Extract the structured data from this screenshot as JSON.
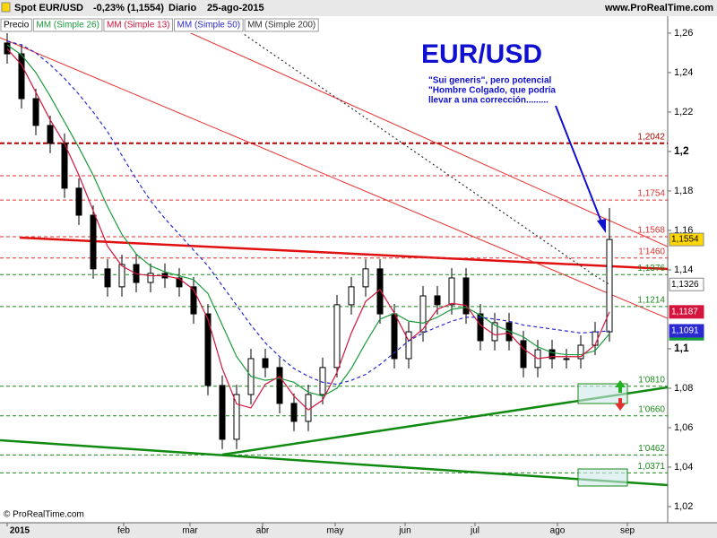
{
  "header": {
    "instrument": "Spot EUR/USD",
    "change": "-0,23% (1,1554)",
    "period": "Diario",
    "date": "25-ago-2015",
    "site": "www.ProRealTime.com"
  },
  "chart_data": {
    "type": "candlestick",
    "annotation_title": "EUR/USD",
    "annotation_note": [
      "\"Sui generis\", pero potencial",
      "\"Hombre Colgado, que podría",
      "llevar a una corrección........."
    ],
    "copyright": "© ProRealTime.com",
    "x_labels": [
      "2015",
      "feb",
      "mar",
      "abr",
      "may",
      "jun",
      "jul",
      "ago",
      "sep"
    ],
    "ylim": [
      1.0118,
      1.2677
    ],
    "yticks": [
      {
        "value": 1.26,
        "label": "1,26"
      },
      {
        "value": 1.24,
        "label": "1,24"
      },
      {
        "value": 1.22,
        "label": "1,22"
      },
      {
        "value": 1.2,
        "label": "1,2"
      },
      {
        "value": 1.18,
        "label": "1,18"
      },
      {
        "value": 1.16,
        "label": "1,16"
      },
      {
        "value": 1.14,
        "label": "1,14"
      },
      {
        "value": 1.1,
        "label": "1,1"
      },
      {
        "value": 1.08,
        "label": "1,08"
      },
      {
        "value": 1.06,
        "label": "1,06"
      },
      {
        "value": 1.04,
        "label": "1,04"
      },
      {
        "value": 1.02,
        "label": "1,02"
      }
    ],
    "levels": [
      {
        "value": 1.2042,
        "label": "1,2042",
        "color": "#b00000"
      },
      {
        "value": 1.1877,
        "color": "#e03030"
      },
      {
        "value": 1.1754,
        "label": "1,1754",
        "color": "#e03030"
      },
      {
        "value": 1.1568,
        "label": "1,1568",
        "color": "#e03030"
      },
      {
        "value": 1.146,
        "label": "1'1460",
        "color": "#e03030"
      },
      {
        "value": 1.1376,
        "label": "1,1376",
        "color": "#1a8a1a"
      },
      {
        "value": 1.1214,
        "label": "1,1214",
        "color": "#1a8a1a"
      },
      {
        "value": 1.081,
        "label": "1'0810",
        "color": "#1a8a1a"
      },
      {
        "value": 1.066,
        "label": "1'0660",
        "color": "#1a8a1a"
      },
      {
        "value": 1.0462,
        "label": "1'0462",
        "color": "#1a8a1a"
      },
      {
        "value": 1.0371,
        "label": "1,0371",
        "color": "#1a8a1a"
      }
    ],
    "series": [
      {
        "name": "Precio",
        "style": "candle",
        "color": "#000000",
        "tag_color": "#ffd700",
        "last_label": "1,1554",
        "open": [
          1.255,
          1.2495,
          1.2268,
          1.2132,
          1.2041,
          1.1814,
          1.1677,
          1.1405,
          1.1314,
          1.1427,
          1.1336,
          1.1382,
          1.1359,
          1.1314,
          1.1177,
          1.0814,
          1.0541,
          1.0768,
          1.095,
          1.0905,
          1.0723,
          1.0632,
          1.0768,
          1.0905,
          1.1223,
          1.1314,
          1.1405,
          1.1177,
          1.095,
          1.1086,
          1.1268,
          1.1223,
          1.1359,
          1.1177,
          1.1041,
          1.1132,
          1.1041,
          1.0905,
          1.0995,
          1.095,
          1.095,
          1.1018,
          1.1086
        ],
        "high": [
          1.26,
          1.2545,
          1.2318,
          1.2182,
          1.2091,
          1.1864,
          1.1727,
          1.1455,
          1.1477,
          1.1477,
          1.1432,
          1.1432,
          1.1409,
          1.1364,
          1.1227,
          1.0864,
          1.0818,
          1.1,
          1.1,
          1.0955,
          1.0773,
          1.0818,
          1.0955,
          1.1273,
          1.1364,
          1.1455,
          1.1455,
          1.1227,
          1.1136,
          1.1318,
          1.1318,
          1.1409,
          1.1409,
          1.1227,
          1.1182,
          1.1182,
          1.1091,
          1.1045,
          1.1045,
          1.1,
          1.1068,
          1.1136,
          1.1714
        ],
        "low": [
          1.2445,
          1.2218,
          1.2082,
          1.1991,
          1.1764,
          1.1627,
          1.1355,
          1.1264,
          1.1264,
          1.1286,
          1.1286,
          1.1309,
          1.1264,
          1.1127,
          1.0764,
          1.0491,
          1.0491,
          1.0718,
          1.0855,
          1.0673,
          1.0582,
          1.0582,
          1.0718,
          1.0855,
          1.1173,
          1.1264,
          1.1127,
          1.09,
          1.09,
          1.1036,
          1.1173,
          1.1173,
          1.1127,
          1.0991,
          1.0991,
          1.0991,
          1.0855,
          1.0855,
          1.09,
          1.09,
          1.09,
          1.0968,
          1.1036
        ],
        "close": [
          1.2495,
          1.2268,
          1.2132,
          1.2041,
          1.1814,
          1.1677,
          1.1405,
          1.1314,
          1.1427,
          1.1336,
          1.1382,
          1.1359,
          1.1314,
          1.1177,
          1.0814,
          1.0541,
          1.0768,
          1.095,
          1.0905,
          1.0723,
          1.0632,
          1.0768,
          1.0905,
          1.1223,
          1.1314,
          1.1405,
          1.1177,
          1.095,
          1.1086,
          1.1268,
          1.1223,
          1.1359,
          1.1177,
          1.1041,
          1.1132,
          1.1041,
          1.0905,
          1.0995,
          1.095,
          1.095,
          1.1018,
          1.1086,
          1.1554
        ]
      },
      {
        "name": "MM (Simple 26)",
        "style": "line",
        "color": "#1a9a3a",
        "last_label": "1,1076",
        "values": [
          1.254,
          1.249,
          1.24,
          1.228,
          1.215,
          1.202,
          1.188,
          1.172,
          1.158,
          1.148,
          1.142,
          1.139,
          1.137,
          1.135,
          1.128,
          1.112,
          1.096,
          1.086,
          1.084,
          1.085,
          1.083,
          1.078,
          1.076,
          1.08,
          1.09,
          1.103,
          1.115,
          1.118,
          1.114,
          1.113,
          1.116,
          1.12,
          1.121,
          1.117,
          1.112,
          1.109,
          1.106,
          1.101,
          1.098,
          1.097,
          1.097,
          1.099,
          1.1076
        ]
      },
      {
        "name": "MM (Simple 13)",
        "style": "line",
        "color": "#d4143c",
        "last_label": "1,1187",
        "values": [
          1.252,
          1.244,
          1.23,
          1.216,
          1.204,
          1.188,
          1.17,
          1.152,
          1.142,
          1.138,
          1.137,
          1.137,
          1.1355,
          1.13,
          1.115,
          1.09,
          1.072,
          1.07,
          1.082,
          1.086,
          1.076,
          1.069,
          1.074,
          1.088,
          1.108,
          1.124,
          1.13,
          1.118,
          1.104,
          1.11,
          1.12,
          1.123,
          1.122,
          1.112,
          1.107,
          1.108,
          1.1,
          1.095,
          1.096,
          1.096,
          1.096,
          1.102,
          1.1187
        ]
      },
      {
        "name": "MM (Simple 50)",
        "style": "line",
        "dash": "4 3",
        "color": "#2a2ad0",
        "last_label": "1,1091",
        "values": [
          1.256,
          1.254,
          1.25,
          1.244,
          1.237,
          1.229,
          1.22,
          1.21,
          1.198,
          1.186,
          1.175,
          1.166,
          1.158,
          1.15,
          1.142,
          1.132,
          1.122,
          1.112,
          1.103,
          1.096,
          1.09,
          1.086,
          1.083,
          1.082,
          1.084,
          1.087,
          1.092,
          1.098,
          1.104,
          1.108,
          1.111,
          1.114,
          1.116,
          1.116,
          1.115,
          1.114,
          1.112,
          1.111,
          1.11,
          1.109,
          1.108,
          1.1085,
          1.1091
        ]
      },
      {
        "name": "MM (Simple 200)",
        "style": "line",
        "dash": "2 3",
        "color": "#333333",
        "tag_color": "#ffffff",
        "last_label": "1,1326",
        "values": [
          null,
          null,
          null,
          null,
          null,
          null,
          null,
          null,
          null,
          null,
          null,
          null,
          null,
          null,
          null,
          1.267,
          1.262,
          1.257,
          1.252,
          1.247,
          1.242,
          1.237,
          1.232,
          1.227,
          1.222,
          1.217,
          1.212,
          1.207,
          1.202,
          1.197,
          1.192,
          1.187,
          1.182,
          1.177,
          1.172,
          1.167,
          1.162,
          1.157,
          1.152,
          1.147,
          1.142,
          1.137,
          1.1326
        ]
      }
    ]
  }
}
